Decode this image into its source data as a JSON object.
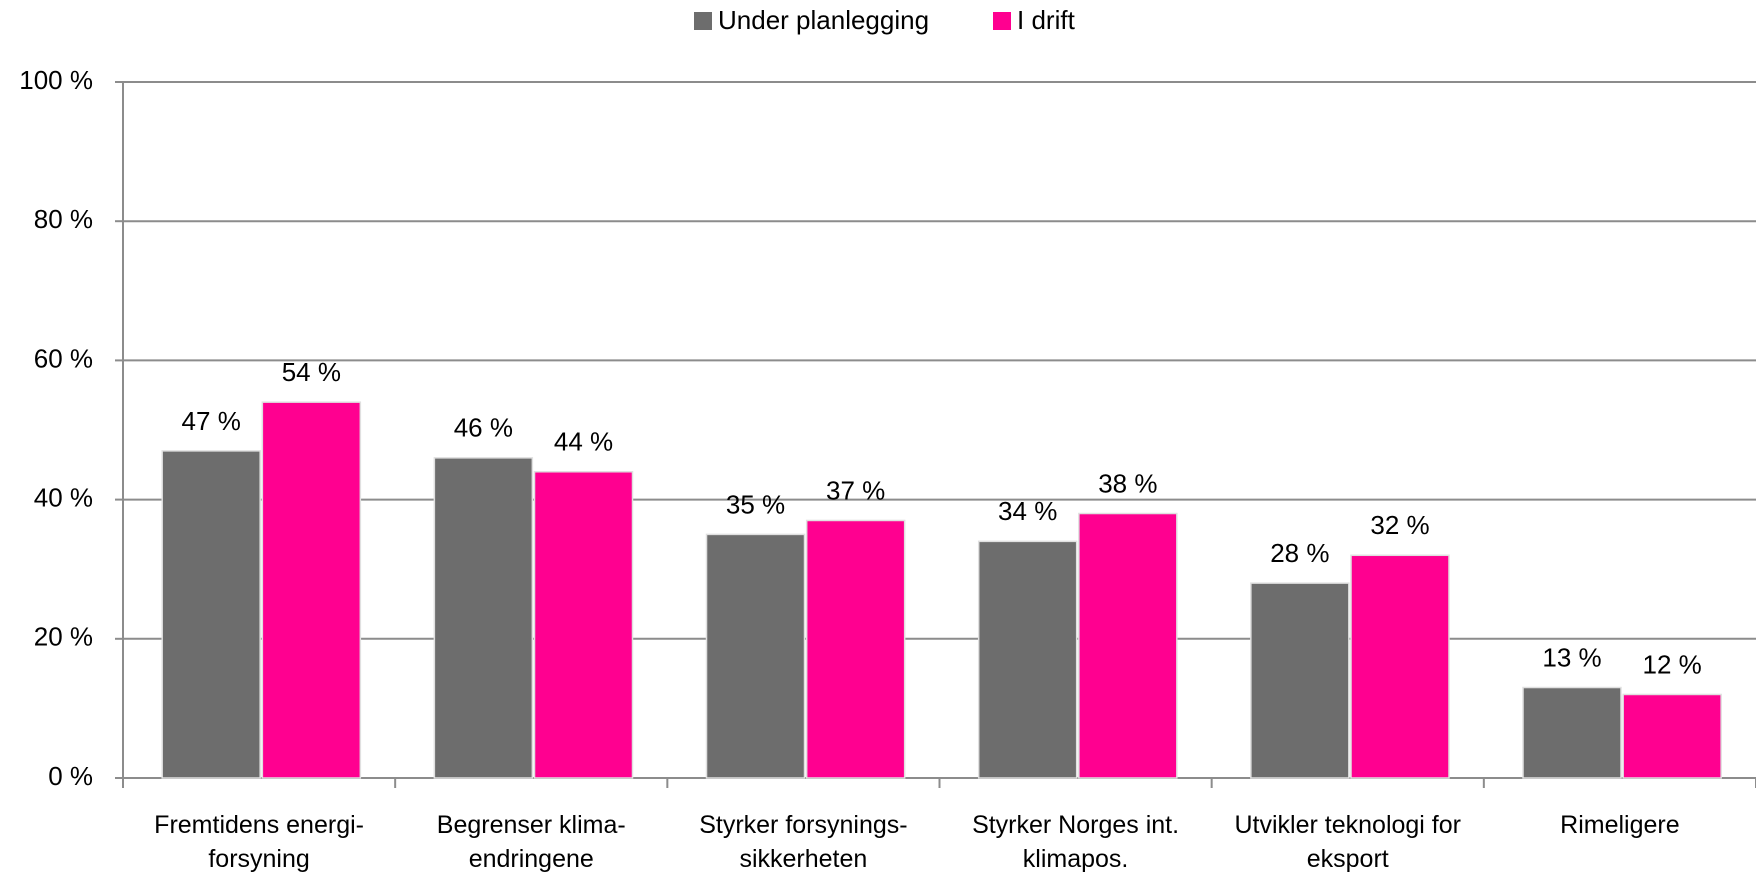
{
  "chart_data": {
    "type": "bar",
    "categories": [
      "Fremtidens energi-\nforsyning",
      "Begrenser klima-\nendringene",
      "Styrker forsynings-\nsikkerheten",
      "Styrker Norges int.\nklimapos.",
      "Utvikler teknologi for\neksport",
      "Rimeligere"
    ],
    "series": [
      {
        "name": "Under planlegging",
        "color": "#6d6d6d",
        "values": [
          47,
          46,
          35,
          34,
          28,
          13
        ],
        "value_labels": [
          "47 %",
          "46 %",
          "35 %",
          "34 %",
          "28 %",
          "13 %"
        ]
      },
      {
        "name": "I drift",
        "color": "#ff0090",
        "values": [
          54,
          44,
          37,
          38,
          32,
          12
        ],
        "value_labels": [
          "54 %",
          "44 %",
          "37 %",
          "38 %",
          "32 %",
          "12 %"
        ]
      }
    ],
    "ylim": [
      0,
      100
    ],
    "yticks": [
      {
        "value": 0,
        "label": "0 %"
      },
      {
        "value": 20,
        "label": "20 %"
      },
      {
        "value": 40,
        "label": "40 %"
      },
      {
        "value": 60,
        "label": "60 %"
      },
      {
        "value": 80,
        "label": "80 %"
      },
      {
        "value": 100,
        "label": "100 %"
      }
    ],
    "grid": true,
    "legend": "top"
  }
}
